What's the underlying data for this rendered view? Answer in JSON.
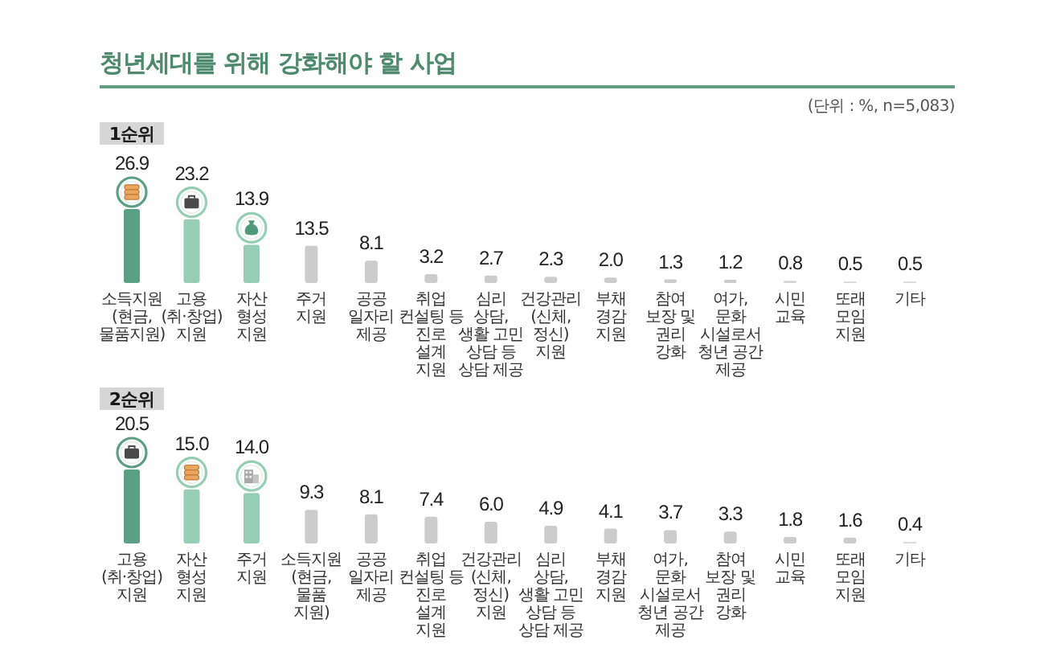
{
  "chart_data": [
    {
      "type": "bar",
      "title": "청년세대를 위해 강화해야 할 사업",
      "subtitle": "1순위",
      "annotations": [
        "(단위 : %, n=5,083)"
      ],
      "categories": [
        "소득지원\n(현금,\n물품지원)",
        "고용\n(취·창업)\n지원",
        "자산\n형성\n지원",
        "주거\n지원",
        "공공\n일자리\n제공",
        "취업\n컨설팅 등\n진로\n설계\n지원",
        "심리\n상담,\n생활 고민\n상담 등\n상담 제공",
        "건강관리\n(신체,\n정신)\n지원",
        "부채\n경감\n지원",
        "참여\n보장 및\n권리\n강화",
        "여가,\n문화\n시설로서\n청년 공간\n제공",
        "시민\n교육",
        "또래\n모임\n지원",
        "기타"
      ],
      "values": [
        26.9,
        23.2,
        13.9,
        13.5,
        8.1,
        3.2,
        2.7,
        2.3,
        2.0,
        1.3,
        1.2,
        0.8,
        0.5,
        0.5
      ],
      "value_labels": [
        "26.9",
        "23.2",
        "13.9",
        "13.5",
        "8.1",
        "3.2",
        "2.7",
        "2.3",
        "2.0",
        "1.3",
        "1.2",
        "0.8",
        "0.5",
        "0.5"
      ],
      "colors": [
        "#5b9f84",
        "#96cdb5",
        "#96cdb5",
        "#cccccc",
        "#cccccc",
        "#cccccc",
        "#cccccc",
        "#cccccc",
        "#cccccc",
        "#cccccc",
        "#cccccc",
        "#d6d6d6",
        "#d6d6d6",
        "#d6d6d6"
      ],
      "tick_labels": "x"
    },
    {
      "type": "bar",
      "subtitle": "2순위",
      "categories": [
        "고용\n(취·창업)\n지원",
        "자산\n형성\n지원",
        "주거\n지원",
        "소득지원\n(현금,\n물품\n지원)",
        "공공\n일자리\n제공",
        "취업\n컨설팅 등\n진로\n설계\n지원",
        "건강관리\n(신체,\n정신)\n지원",
        "심리\n상담,\n생활 고민\n상담 등\n상담 제공",
        "부채\n경감\n지원",
        "여가,\n문화\n시설로서\n청년 공간\n제공",
        "참여\n보장 및\n권리\n강화",
        "시민\n교육",
        "또래\n모임\n지원",
        "기타"
      ],
      "values": [
        20.5,
        15.0,
        14.0,
        9.3,
        8.1,
        7.4,
        6.0,
        4.9,
        4.1,
        3.7,
        3.3,
        1.8,
        1.6,
        0.4
      ],
      "value_labels": [
        "20.5",
        "15.0",
        "14.0",
        "9.3",
        "8.1",
        "7.4",
        "6.0",
        "4.9",
        "4.1",
        "3.7",
        "3.3",
        "1.8",
        "1.6",
        "0.4"
      ],
      "colors": [
        "#5b9f84",
        "#96cdb5",
        "#96cdb5",
        "#cccccc",
        "#cccccc",
        "#cccccc",
        "#cccccc",
        "#cccccc",
        "#cccccc",
        "#cccccc",
        "#cccccc",
        "#cccccc",
        "#cccccc",
        "#d6d6d6"
      ],
      "tick_labels": "x"
    }
  ]
}
